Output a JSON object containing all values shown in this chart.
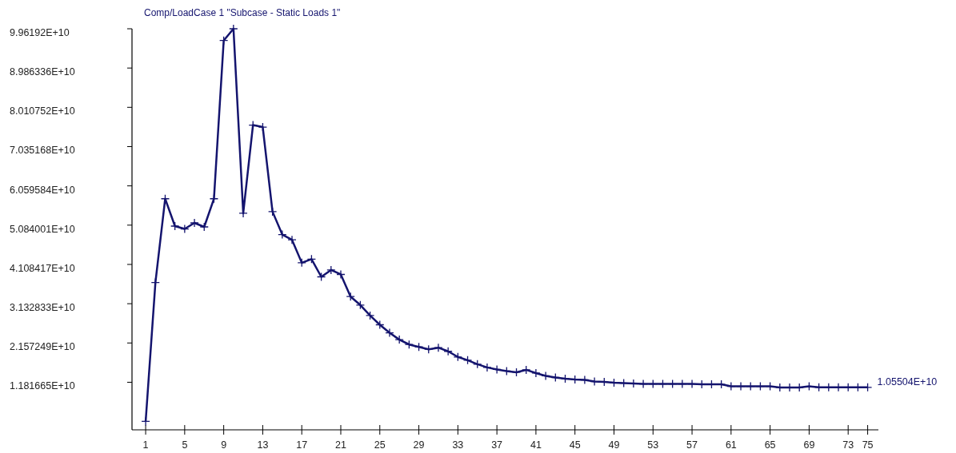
{
  "chart_data": {
    "type": "line",
    "title": "Comp/LoadCase 1 \"Subcase - Static Loads 1\"",
    "x": [
      1,
      2,
      3,
      4,
      5,
      6,
      7,
      8,
      9,
      10,
      11,
      12,
      13,
      14,
      15,
      16,
      17,
      18,
      19,
      20,
      21,
      22,
      23,
      24,
      25,
      26,
      27,
      28,
      29,
      30,
      31,
      32,
      33,
      34,
      35,
      36,
      37,
      38,
      39,
      40,
      41,
      42,
      43,
      44,
      45,
      46,
      47,
      48,
      49,
      50,
      51,
      52,
      53,
      54,
      55,
      56,
      57,
      58,
      59,
      60,
      61,
      62,
      63,
      64,
      65,
      66,
      67,
      68,
      69,
      70,
      71,
      72,
      73,
      74,
      75
    ],
    "series": [
      {
        "color": "#14146e",
        "values": [
          2100000000.0,
          36600000000.0,
          57400000000.0,
          50600000000.0,
          49900000000.0,
          51400000000.0,
          50400000000.0,
          57400000000.0,
          96700000000.0,
          99619200000.0,
          53800000000.0,
          75700000000.0,
          75200000000.0,
          54200000000.0,
          48500000000.0,
          47200000000.0,
          41500000000.0,
          42400000000.0,
          38000000000.0,
          39700000000.0,
          38600000000.0,
          33100000000.0,
          31000000000.0,
          28400000000.0,
          26100000000.0,
          24100000000.0,
          22400000000.0,
          21200000000.0,
          20600000000.0,
          20000000000.0,
          20400000000.0,
          19500000000.0,
          18100000000.0,
          17300000000.0,
          16300000000.0,
          15500000000.0,
          15000000000.0,
          14600000000.0,
          14300000000.0,
          14900000000.0,
          14100000000.0,
          13400000000.0,
          13000000000.0,
          12700000000.0,
          12500000000.0,
          12400000000.0,
          12000000000.0,
          11900000000.0,
          11700000000.0,
          11600000000.0,
          11500000000.0,
          11400000000.0,
          11400000000.0,
          11400000000.0,
          11400000000.0,
          11400000000.0,
          11400000000.0,
          11300000000.0,
          11300000000.0,
          11300000000.0,
          10800000000.0,
          10800000000.0,
          10800000000.0,
          10800000000.0,
          10800000000.0,
          10500000000.0,
          10500000000.0,
          10500000000.0,
          10800000000.0,
          10550400000.0,
          10550400000.0,
          10550400000.0,
          10550400000.0,
          10550400000.0,
          10550400000.0
        ]
      }
    ],
    "xlim": [
      -0.4,
      76.1
    ],
    "xticks": [
      1,
      5,
      9,
      13,
      17,
      21,
      25,
      29,
      33,
      37,
      41,
      45,
      49,
      53,
      57,
      61,
      65,
      69,
      73,
      75
    ],
    "ylim": [
      0,
      99619200000.0
    ],
    "yticks": [
      {
        "value": 11816650000.0,
        "label": "1.181665E+10"
      },
      {
        "value": 21572490000.0,
        "label": "2.157249E+10"
      },
      {
        "value": 31328330000.0,
        "label": "3.132833E+10"
      },
      {
        "value": 41084170000.0,
        "label": "4.108417E+10"
      },
      {
        "value": 50840010000.0,
        "label": "5.084001E+10"
      },
      {
        "value": 60595840000.0,
        "label": "6.059584E+10"
      },
      {
        "value": 70351680000.0,
        "label": "7.035168E+10"
      },
      {
        "value": 80107520000.0,
        "label": "8.010752E+10"
      },
      {
        "value": 89863360000.0,
        "label": "8.986336E+10"
      },
      {
        "value": 99619200000.0,
        "label": "9.96192E+10"
      }
    ],
    "annotations": [
      {
        "text": "1.05504E+10",
        "x": 75,
        "y": 10550400000.0
      }
    ],
    "marker": "cross"
  }
}
